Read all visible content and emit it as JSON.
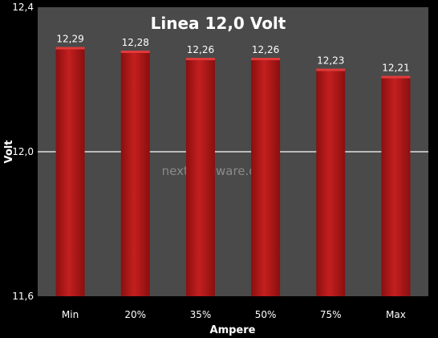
{
  "chart_data": {
    "type": "bar",
    "title": "Linea 12,0 Volt",
    "xlabel": "Ampere",
    "ylabel": "Volt",
    "categories": [
      "Min",
      "20%",
      "35%",
      "50%",
      "75%",
      "Max"
    ],
    "values": [
      12.29,
      12.28,
      12.26,
      12.26,
      12.23,
      12.21
    ],
    "value_labels": [
      "12,29",
      "12,28",
      "12,26",
      "12,26",
      "12,23",
      "12,21"
    ],
    "ylim": [
      11.6,
      12.4
    ],
    "yticks": [
      11.6,
      12.0,
      12.4
    ],
    "ytick_labels": [
      "11,6",
      "12,0",
      "12,4"
    ],
    "grid": "major y at 12,0",
    "legend": "none",
    "watermark": "nexthardware.com",
    "colors": {
      "background": "#000000",
      "plot_area": "#4a4a4a",
      "bar": "#b01818",
      "bar_highlight": "#e03a3a",
      "gridline": "#e0e0e0",
      "text": "#ffffff"
    }
  }
}
